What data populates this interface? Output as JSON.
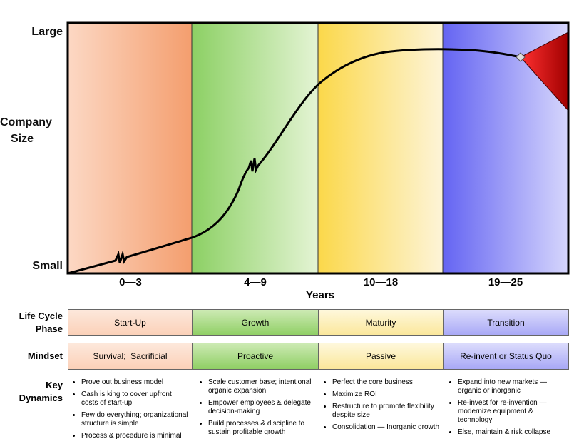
{
  "y_axis": {
    "top": "Large",
    "label": "Company Size",
    "bottom": "Small"
  },
  "x_axis": {
    "title": "Years",
    "periods": [
      "0—3",
      "4—9",
      "10—18",
      "19—25"
    ]
  },
  "rows": [
    {
      "label": "Life Cycle Phase",
      "cells": [
        "Start-Up",
        "Growth",
        "Maturity",
        "Transition"
      ]
    },
    {
      "label": "Mindset",
      "cells": [
        "Survival;  Sacrificial",
        "Proactive",
        "Passive",
        "Re-invent or Status Quo"
      ]
    }
  ],
  "key_dynamics": {
    "label": "Key Dynamics",
    "columns": [
      [
        "Prove out business model",
        "Cash is king to cover upfront costs of start-up",
        "Few do everything; organizational structure is simple",
        "Process & procedure is minimal"
      ],
      [
        "Scale customer base; intentional organic expansion",
        "Empower employees & delegate decision-making",
        "Build processes & discipline to sustain profitable growth"
      ],
      [
        "Perfect the core business",
        "Maximize ROI",
        "Restructure to promote flexibility despite size",
        "Consolidation — Inorganic growth"
      ],
      [
        "Expand into new markets — organic or inorganic",
        "Re-invest for re-invention — modernize equipment & technology",
        "Else, maintain & risk collapse"
      ]
    ]
  }
}
